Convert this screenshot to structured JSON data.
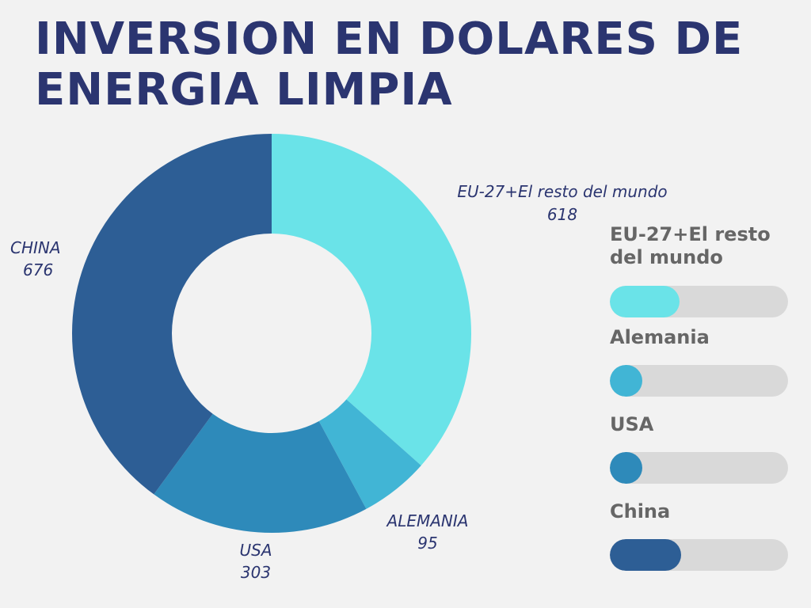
{
  "title": {
    "line1": "INVERSION EN DOLARES DE",
    "line2": "ENERGIA LIMPIA"
  },
  "colors": {
    "title": "#2b3570",
    "label_text": "#2b3570",
    "legend_text": "#666666",
    "track": "#d9d9d9",
    "background": "#f2f2f2"
  },
  "chart_data": {
    "type": "pie",
    "variant": "donut",
    "slices": [
      {
        "name": "EU-27+El resto del mundo",
        "value": 618,
        "value_label": "618",
        "color": "#6ae3e8"
      },
      {
        "name": "ALEMANIA",
        "value": 95,
        "value_label": "95",
        "color": "#41b5d5"
      },
      {
        "name": "USA",
        "value": 303,
        "value_label": "303",
        "color": "#2e8aba"
      },
      {
        "name": "CHINA",
        "value": 676,
        "value_label": "676",
        "color": "#2d5e95"
      }
    ]
  },
  "legend": {
    "items": [
      {
        "label": "EU-27+El resto del mundo",
        "fill_fraction": 0.39,
        "color": "#6ae3e8"
      },
      {
        "label": "Alemania",
        "fill_fraction": 0.18,
        "color": "#41b5d5"
      },
      {
        "label": "USA",
        "fill_fraction": 0.18,
        "color": "#2e8aba"
      },
      {
        "label": "China",
        "fill_fraction": 0.4,
        "color": "#2d5e95"
      }
    ]
  }
}
